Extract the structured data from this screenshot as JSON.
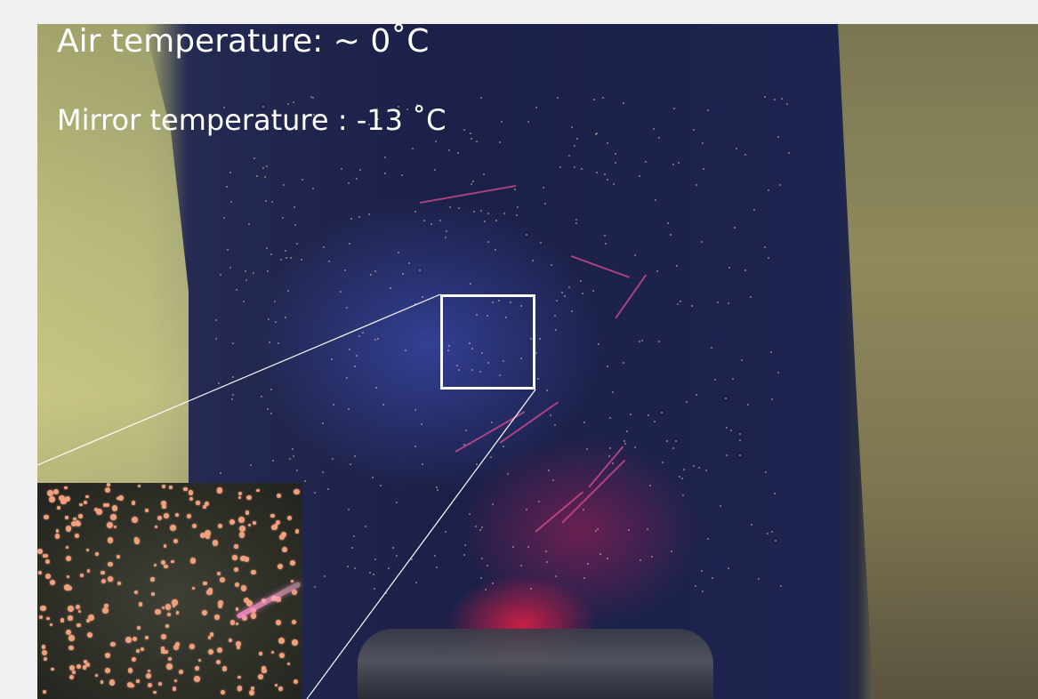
{
  "labels": {
    "air_temperature": "Air temperature: ~ 0˚C",
    "mirror_temperature": "Mirror temperature : -13 ˚C"
  },
  "colors": {
    "background": "#f0f0f0",
    "label_text": "#ffffff",
    "zoom_box": "#ffffff",
    "frost_glow": "#e61e46"
  }
}
